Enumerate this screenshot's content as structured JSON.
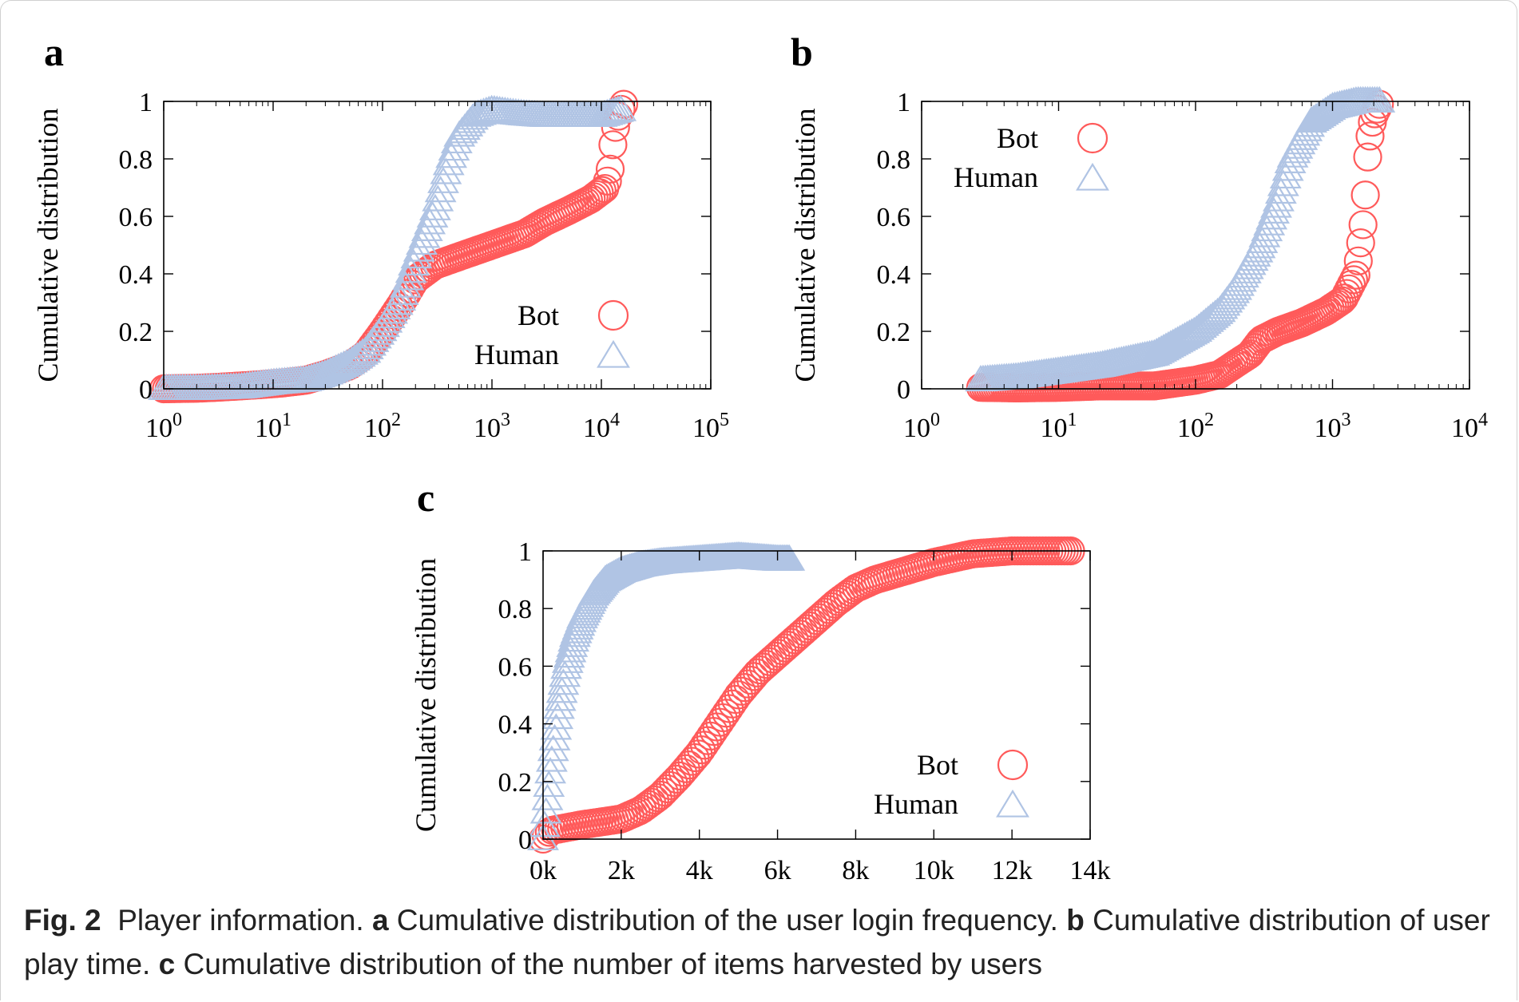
{
  "chart_data": [
    {
      "panel": "a",
      "type": "scatter",
      "ylabel": "Cumulative distribution",
      "x_scale": "log",
      "xlim": [
        1,
        100000
      ],
      "ylim": [
        0,
        1
      ],
      "x_ticks": [
        1,
        10,
        100,
        1000,
        10000,
        100000
      ],
      "y_ticks": [
        0,
        0.2,
        0.4,
        0.6,
        0.8,
        1
      ],
      "y_tick_labels": [
        "0",
        "0.2",
        "0.4",
        "0.6",
        "0.8",
        "1"
      ],
      "legend": "bottom-right",
      "series": [
        {
          "name": "Bot",
          "marker": "circle",
          "color": "#ff5a5a",
          "points": [
            [
              1,
              0
            ],
            [
              2,
              0.002
            ],
            [
              3,
              0.005
            ],
            [
              5,
              0.01
            ],
            [
              8,
              0.015
            ],
            [
              12,
              0.02
            ],
            [
              20,
              0.03
            ],
            [
              30,
              0.05
            ],
            [
              50,
              0.08
            ],
            [
              70,
              0.12
            ],
            [
              100,
              0.2
            ],
            [
              150,
              0.3
            ],
            [
              200,
              0.38
            ],
            [
              300,
              0.43
            ],
            [
              500,
              0.46
            ],
            [
              1000,
              0.5
            ],
            [
              2000,
              0.54
            ],
            [
              3000,
              0.58
            ],
            [
              5000,
              0.62
            ],
            [
              8000,
              0.66
            ],
            [
              11000,
              0.7
            ],
            [
              12000,
              0.76
            ],
            [
              12500,
              0.82
            ],
            [
              13000,
              0.88
            ],
            [
              14000,
              0.94
            ],
            [
              15000,
              0.97
            ],
            [
              16000,
              0.99
            ]
          ]
        },
        {
          "name": "Human",
          "marker": "triangle",
          "color": "#b0c4e4",
          "points": [
            [
              1,
              0
            ],
            [
              2,
              0
            ],
            [
              5,
              0.005
            ],
            [
              10,
              0.02
            ],
            [
              20,
              0.03
            ],
            [
              30,
              0.05
            ],
            [
              50,
              0.09
            ],
            [
              70,
              0.13
            ],
            [
              100,
              0.21
            ],
            [
              150,
              0.32
            ],
            [
              200,
              0.45
            ],
            [
              300,
              0.62
            ],
            [
              400,
              0.78
            ],
            [
              500,
              0.88
            ],
            [
              700,
              0.95
            ],
            [
              1000,
              0.97
            ],
            [
              1500,
              0.96
            ],
            [
              2000,
              0.955
            ],
            [
              3000,
              0.95
            ],
            [
              5000,
              0.95
            ],
            [
              10000,
              0.95
            ],
            [
              15000,
              0.97
            ]
          ]
        }
      ]
    },
    {
      "panel": "b",
      "type": "scatter",
      "ylabel": "Cumulative distribution",
      "x_scale": "log",
      "xlim": [
        1,
        10000
      ],
      "ylim": [
        0,
        1
      ],
      "x_ticks": [
        1,
        10,
        100,
        1000,
        10000
      ],
      "y_ticks": [
        0,
        0.2,
        0.4,
        0.6,
        0.8,
        1
      ],
      "y_tick_labels": [
        "0",
        "0.2",
        "0.4",
        "0.6",
        "0.8",
        "1"
      ],
      "legend": "top-left",
      "series": [
        {
          "name": "Bot",
          "marker": "circle",
          "color": "#ff5a5a",
          "points": [
            [
              2.7,
              0.005
            ],
            [
              5,
              0.003
            ],
            [
              10,
              0.005
            ],
            [
              20,
              0.01
            ],
            [
              50,
              0.01
            ],
            [
              100,
              0.03
            ],
            [
              150,
              0.05
            ],
            [
              200,
              0.09
            ],
            [
              250,
              0.12
            ],
            [
              300,
              0.17
            ],
            [
              400,
              0.2
            ],
            [
              600,
              0.23
            ],
            [
              900,
              0.27
            ],
            [
              1200,
              0.31
            ],
            [
              1500,
              0.4
            ],
            [
              1700,
              0.6
            ],
            [
              1800,
              0.8
            ],
            [
              1900,
              0.9
            ],
            [
              2000,
              0.95
            ],
            [
              2200,
              0.99
            ]
          ]
        },
        {
          "name": "Human",
          "marker": "triangle",
          "color": "#b0c4e4",
          "points": [
            [
              2.7,
              0.03
            ],
            [
              5,
              0.04
            ],
            [
              10,
              0.06
            ],
            [
              20,
              0.08
            ],
            [
              50,
              0.12
            ],
            [
              100,
              0.2
            ],
            [
              150,
              0.27
            ],
            [
              200,
              0.35
            ],
            [
              300,
              0.5
            ],
            [
              400,
              0.65
            ],
            [
              500,
              0.8
            ],
            [
              700,
              0.93
            ],
            [
              1000,
              0.98
            ],
            [
              1500,
              1.0
            ],
            [
              2200,
              1.0
            ]
          ]
        }
      ]
    },
    {
      "panel": "c",
      "type": "scatter",
      "ylabel": "Cumulative distribution",
      "x_scale": "linear",
      "xlim": [
        0,
        14000
      ],
      "ylim": [
        0,
        1
      ],
      "x_ticks": [
        0,
        2000,
        4000,
        6000,
        8000,
        10000,
        12000,
        14000
      ],
      "x_tick_labels": [
        "0k",
        "2k",
        "4k",
        "6k",
        "8k",
        "10k",
        "12k",
        "14k"
      ],
      "y_ticks": [
        0,
        0.2,
        0.4,
        0.6,
        0.8,
        1
      ],
      "y_tick_labels": [
        "0",
        "0.2",
        "0.4",
        "0.6",
        "0.8",
        "1"
      ],
      "legend": "bottom-right",
      "series": [
        {
          "name": "Bot",
          "marker": "circle",
          "color": "#ff5a5a",
          "points": [
            [
              0,
              0
            ],
            [
              200,
              0.03
            ],
            [
              1000,
              0.05
            ],
            [
              2000,
              0.07
            ],
            [
              2500,
              0.1
            ],
            [
              3000,
              0.15
            ],
            [
              3500,
              0.22
            ],
            [
              4000,
              0.3
            ],
            [
              4500,
              0.4
            ],
            [
              5000,
              0.5
            ],
            [
              5500,
              0.58
            ],
            [
              6000,
              0.64
            ],
            [
              6500,
              0.7
            ],
            [
              7000,
              0.76
            ],
            [
              7500,
              0.82
            ],
            [
              8000,
              0.87
            ],
            [
              8500,
              0.9
            ],
            [
              9000,
              0.92
            ],
            [
              10000,
              0.96
            ],
            [
              11000,
              0.99
            ],
            [
              12000,
              1.0
            ],
            [
              12800,
              1.0
            ],
            [
              13500,
              1.0
            ]
          ]
        },
        {
          "name": "Human",
          "marker": "triangle",
          "color": "#b0c4e4",
          "points": [
            [
              0,
              0
            ],
            [
              200,
              0.25
            ],
            [
              400,
              0.45
            ],
            [
              600,
              0.6
            ],
            [
              800,
              0.7
            ],
            [
              1000,
              0.77
            ],
            [
              1300,
              0.85
            ],
            [
              1600,
              0.9
            ],
            [
              2000,
              0.93
            ],
            [
              2500,
              0.95
            ],
            [
              3000,
              0.96
            ],
            [
              4000,
              0.97
            ],
            [
              5000,
              0.98
            ],
            [
              6000,
              0.97
            ],
            [
              6300,
              0.97
            ]
          ]
        }
      ]
    }
  ],
  "panel_labels": {
    "a": "a",
    "b": "b",
    "c": "c"
  },
  "legend_labels": {
    "bot": "Bot",
    "human": "Human"
  },
  "caption": {
    "fig_label": "Fig. 2",
    "title": "Player information.",
    "a_label": "a",
    "a_text": "Cumulative distribution of the user login frequency.",
    "b_label": "b",
    "b_text": "Cumulative distribution of user play time.",
    "c_label": "c",
    "c_text": "Cumulative distribution of the number of items harvested by users"
  }
}
